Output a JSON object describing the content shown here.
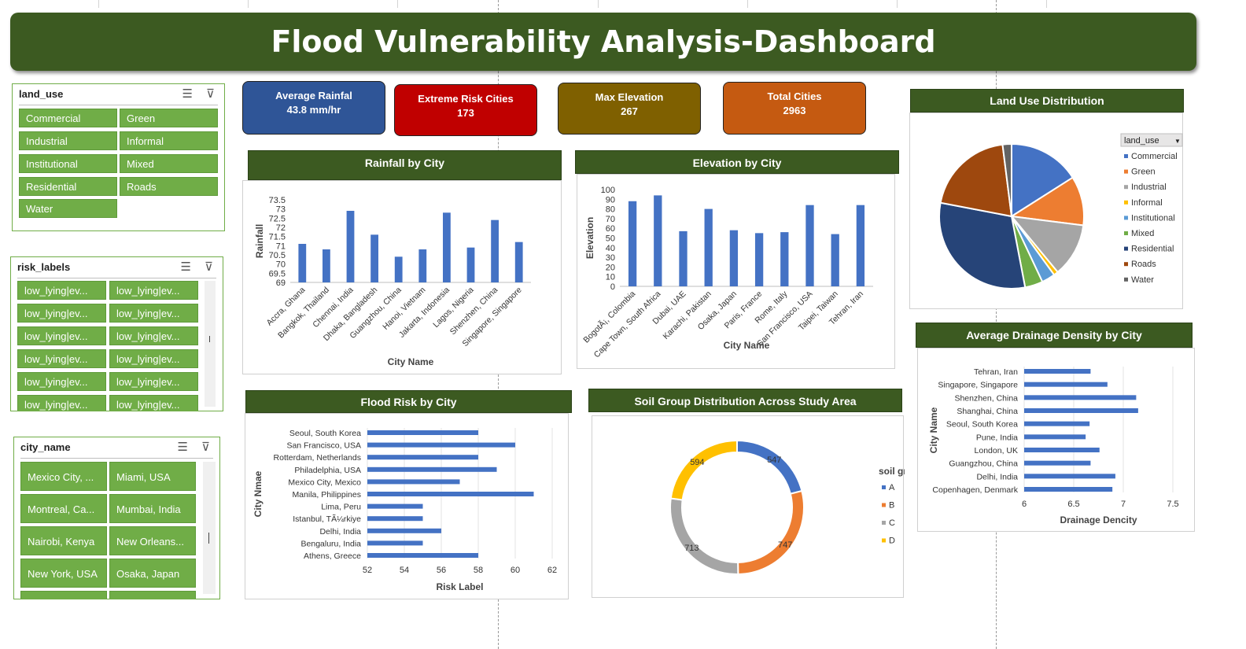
{
  "title": "Flood Vulnerability Analysis-Dashboard",
  "kpis": [
    {
      "label": "Average Rainfal",
      "value": "43.8 mm/hr",
      "color": "#2f5597"
    },
    {
      "label": "Extreme Risk Cities",
      "value": "173",
      "color": "#c00000"
    },
    {
      "label": "Max Elevation",
      "value": "267",
      "color": "#7f6000"
    },
    {
      "label": "Total Cities",
      "value": "2963",
      "color": "#c55a11"
    }
  ],
  "slicers": {
    "land_use": {
      "title": "land_use",
      "items": [
        "Commercial",
        "Green",
        "Industrial",
        "Informal",
        "Institutional",
        "Mixed",
        "Residential",
        "Roads",
        "Water"
      ]
    },
    "risk_labels": {
      "title": "risk_labels",
      "items": [
        "low_lying|ev...",
        "low_lying|ev...",
        "low_lying|ev...",
        "low_lying|ev...",
        "low_lying|ev...",
        "low_lying|ev...",
        "low_lying|ev...",
        "low_lying|ev...",
        "low_lying|ev...",
        "low_lying|ev...",
        "low_lying|ev...",
        "low_lying|ev..."
      ]
    },
    "city_name": {
      "title": "city_name",
      "items": [
        "Mexico City, ...",
        "Miami, USA",
        "Montreal, Ca...",
        "Mumbai, India",
        "Nairobi, Kenya",
        "New Orleans...",
        "New York, USA",
        "Osaka, Japan",
        "",
        ""
      ]
    }
  },
  "chart_data": [
    {
      "id": "rainfall",
      "type": "bar",
      "title": "Rainfall by City",
      "xlabel": "City Name",
      "ylabel": "Rainfall",
      "ylim": [
        69,
        73.5
      ],
      "yticks": [
        "73.5",
        "73",
        "72.5",
        "72",
        "71.5",
        "71",
        "70.5",
        "70",
        "69.5",
        "69"
      ],
      "categories": [
        "Accra, Ghana",
        "Bangkok, Thailand",
        "Chennai, India",
        "Dhaka, Bangladesh",
        "Guangzhou, China",
        "Hanoi, Vietnam",
        "Jakarta, Indonesia",
        "Lagos, Nigeria",
        "Shenzhen, China",
        "Singapore, Singapore"
      ],
      "values": [
        71.1,
        70.8,
        72.9,
        71.6,
        70.4,
        70.8,
        72.8,
        70.9,
        72.4,
        71.2
      ],
      "color": "#4472c4"
    },
    {
      "id": "elevation",
      "type": "bar",
      "title": "Elevation by City",
      "xlabel": "City Name",
      "ylabel": "Elevation",
      "ylim": [
        0,
        100
      ],
      "yticks": [
        "100",
        "90",
        "80",
        "70",
        "60",
        "50",
        "40",
        "30",
        "20",
        "10",
        "0"
      ],
      "categories": [
        "BogotÃ¡, Colombia",
        "Cape Town, South Africa",
        "Dubai, UAE",
        "Karachi, Pakistan",
        "Osaka, Japan",
        "Paris, France",
        "Rome, Italy",
        "San Francisco, USA",
        "Taipei, Taiwan",
        "Tehran, Iran"
      ],
      "values": [
        88,
        94,
        57,
        80,
        58,
        55,
        56,
        84,
        54,
        84
      ],
      "color": "#4472c4"
    },
    {
      "id": "landuse",
      "type": "pie",
      "title": "Land Use Distribution",
      "legend_title": "land_use",
      "labels": [
        "Commercial",
        "Green",
        "Industrial",
        "Informal",
        "Institutional",
        "Mixed",
        "Residential",
        "Roads",
        "Water"
      ],
      "values": [
        16,
        11,
        12,
        1,
        3,
        4,
        31,
        20,
        2
      ],
      "colors": [
        "#4472c4",
        "#ed7d31",
        "#a5a5a5",
        "#ffc000",
        "#5b9bd5",
        "#70ad47",
        "#264478",
        "#9e480e",
        "#636363"
      ]
    },
    {
      "id": "drainage",
      "type": "bar",
      "orientation": "horizontal",
      "title": "Average Drainage Density by City",
      "xlabel": "Drainage Dencity",
      "ylabel": "City Name",
      "xlim": [
        6,
        7.5
      ],
      "xticks": [
        "6",
        "6.5",
        "7",
        "7.5"
      ],
      "categories": [
        "Tehran, Iran",
        "Singapore, Singapore",
        "Shenzhen, China",
        "Shanghai, China",
        "Seoul, South Korea",
        "Pune, India",
        "London, UK",
        "Guangzhou, China",
        "Delhi, India",
        "Copenhagen, Denmark"
      ],
      "values": [
        6.67,
        6.84,
        7.13,
        7.15,
        6.66,
        6.62,
        6.76,
        6.67,
        6.92,
        6.89
      ],
      "color": "#4472c4"
    },
    {
      "id": "floodrisk",
      "type": "bar",
      "orientation": "horizontal",
      "title": "Flood Risk by City",
      "xlabel": "Risk Label",
      "ylabel": "City Nmae",
      "xlim": [
        52,
        62
      ],
      "xticks": [
        "52",
        "54",
        "56",
        "58",
        "60",
        "62"
      ],
      "categories": [
        "Seoul, South Korea",
        "San Francisco, USA",
        "Rotterdam, Netherlands",
        "Philadelphia, USA",
        "Mexico City, Mexico",
        "Manila, Philippines",
        "Lima, Peru",
        "Istanbul, TÃ¼rkiye",
        "Delhi, India",
        "Bengaluru, India",
        "Athens, Greece"
      ],
      "values": [
        58,
        60,
        58,
        59,
        57,
        61,
        55,
        55,
        56,
        55,
        58
      ],
      "color": "#4472c4"
    },
    {
      "id": "soil",
      "type": "pie",
      "subtype": "donut",
      "title": "Soil Group Distribution Across Study Area",
      "legend_title": "soil group",
      "labels": [
        "A",
        "B",
        "C",
        "D"
      ],
      "values": [
        547,
        747,
        713,
        594
      ],
      "data_labels": [
        "547",
        "747",
        "713",
        "594"
      ],
      "colors": [
        "#4472c4",
        "#ed7d31",
        "#a5a5a5",
        "#ffc000"
      ]
    }
  ]
}
